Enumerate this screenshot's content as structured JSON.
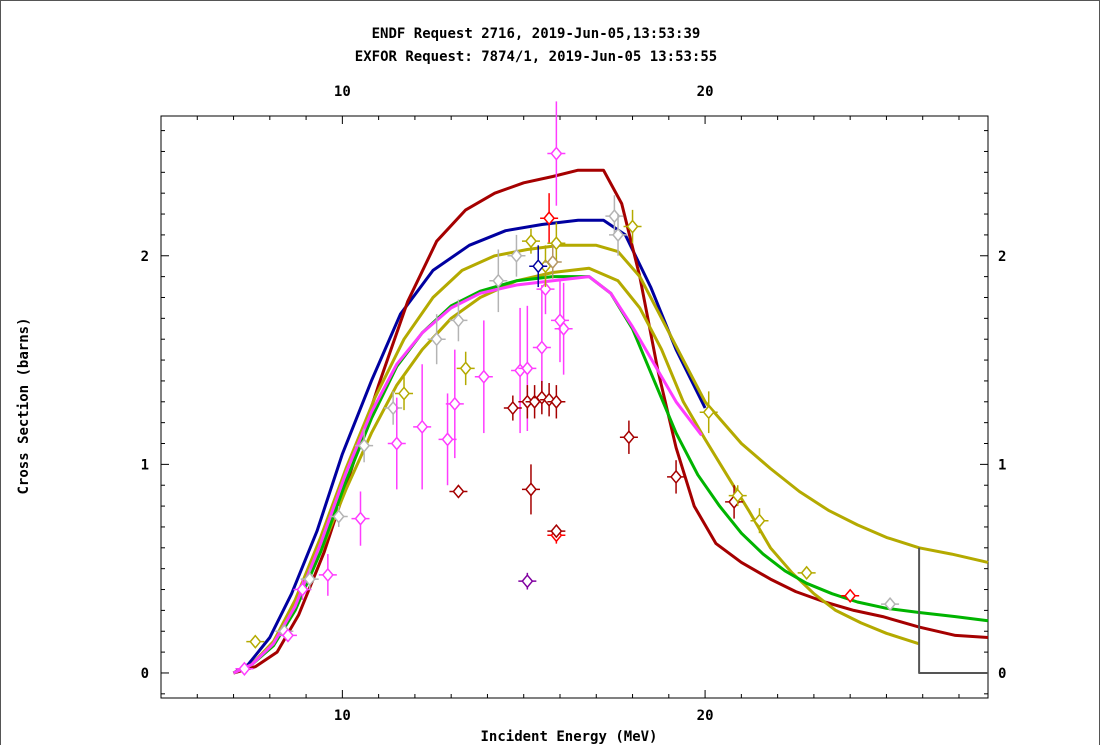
{
  "chart_data": {
    "type": "scatter",
    "title_lines": [
      "ENDF Request 2716, 2019-Jun-05,13:53:39",
      "EXFOR Request: 7874/1, 2019-Jun-05 13:53:55"
    ],
    "xlabel": "Incident Energy (MeV)",
    "ylabel": "Cross Section (barns)",
    "xlim": [
      5.0,
      27.8
    ],
    "ylim": [
      -0.12,
      2.67
    ],
    "x_ticks": [
      {
        "v": 10,
        "label": "10"
      },
      {
        "v": 20,
        "label": "20"
      }
    ],
    "y_ticks": [
      {
        "v": 0,
        "label": "0"
      },
      {
        "v": 1,
        "label": "1"
      },
      {
        "v": 2,
        "label": "2"
      }
    ],
    "grid": false,
    "colors": {
      "darkred": "#a50000",
      "navy": "#0000a0",
      "olive": "#b4aa00",
      "green": "#00b400",
      "magenta": "#ff3cff",
      "gray": "#b4b4b4",
      "red": "#ff0000",
      "purple": "#8000a0",
      "tan": "#b49664",
      "frame": "#555555"
    },
    "curves": [
      {
        "color": "navy",
        "points": [
          [
            7.0,
            0
          ],
          [
            7.4,
            0.04
          ],
          [
            8.0,
            0.17
          ],
          [
            8.6,
            0.38
          ],
          [
            9.3,
            0.68
          ],
          [
            10.0,
            1.05
          ],
          [
            10.8,
            1.4
          ],
          [
            11.6,
            1.72
          ],
          [
            12.5,
            1.93
          ],
          [
            13.5,
            2.05
          ],
          [
            14.5,
            2.12
          ],
          [
            15.5,
            2.15
          ],
          [
            16.5,
            2.17
          ],
          [
            17.2,
            2.17
          ],
          [
            17.8,
            2.1
          ],
          [
            18.5,
            1.85
          ],
          [
            19.2,
            1.55
          ],
          [
            20.0,
            1.27
          ]
        ]
      },
      {
        "color": "darkred",
        "points": [
          [
            7.0,
            0
          ],
          [
            7.6,
            0.03
          ],
          [
            8.2,
            0.1
          ],
          [
            8.8,
            0.28
          ],
          [
            9.5,
            0.58
          ],
          [
            10.2,
            0.95
          ],
          [
            11.0,
            1.38
          ],
          [
            11.8,
            1.78
          ],
          [
            12.6,
            2.07
          ],
          [
            13.4,
            2.22
          ],
          [
            14.2,
            2.3
          ],
          [
            15.0,
            2.35
          ],
          [
            15.8,
            2.38
          ],
          [
            16.5,
            2.41
          ],
          [
            17.2,
            2.41
          ],
          [
            17.7,
            2.25
          ],
          [
            18.2,
            1.9
          ],
          [
            18.7,
            1.45
          ],
          [
            19.2,
            1.08
          ],
          [
            19.7,
            0.8
          ],
          [
            20.3,
            0.62
          ],
          [
            21.0,
            0.53
          ],
          [
            21.8,
            0.45
          ],
          [
            22.5,
            0.39
          ],
          [
            23.3,
            0.34
          ],
          [
            24.1,
            0.3
          ],
          [
            24.9,
            0.27
          ],
          [
            25.9,
            0.22
          ],
          [
            26.9,
            0.18
          ],
          [
            27.8,
            0.17
          ]
        ]
      },
      {
        "color": "olive",
        "points": [
          [
            7.0,
            0
          ],
          [
            7.5,
            0.04
          ],
          [
            8.1,
            0.15
          ],
          [
            8.7,
            0.35
          ],
          [
            9.4,
            0.65
          ],
          [
            10.1,
            0.98
          ],
          [
            10.9,
            1.32
          ],
          [
            11.7,
            1.6
          ],
          [
            12.5,
            1.8
          ],
          [
            13.3,
            1.93
          ],
          [
            14.2,
            2.0
          ],
          [
            15.1,
            2.03
          ],
          [
            16.0,
            2.05
          ],
          [
            17.0,
            2.05
          ],
          [
            17.6,
            2.02
          ],
          [
            18.2,
            1.9
          ],
          [
            18.8,
            1.7
          ],
          [
            19.4,
            1.5
          ],
          [
            20.0,
            1.3
          ],
          [
            20.4,
            1.22
          ],
          [
            21.0,
            1.1
          ],
          [
            21.8,
            0.98
          ],
          [
            22.6,
            0.87
          ],
          [
            23.4,
            0.78
          ],
          [
            24.2,
            0.71
          ],
          [
            25.0,
            0.65
          ],
          [
            25.9,
            0.6
          ],
          [
            26.8,
            0.57
          ],
          [
            27.8,
            0.53
          ]
        ]
      },
      {
        "color": "olive",
        "points": [
          [
            7.0,
            0
          ],
          [
            7.5,
            0.04
          ],
          [
            8.1,
            0.15
          ],
          [
            8.7,
            0.33
          ],
          [
            9.4,
            0.58
          ],
          [
            10.1,
            0.88
          ],
          [
            10.8,
            1.15
          ],
          [
            11.5,
            1.38
          ],
          [
            12.2,
            1.55
          ],
          [
            13.0,
            1.7
          ],
          [
            13.8,
            1.8
          ],
          [
            14.8,
            1.88
          ],
          [
            15.8,
            1.92
          ],
          [
            16.8,
            1.94
          ],
          [
            17.6,
            1.88
          ],
          [
            18.2,
            1.75
          ],
          [
            18.8,
            1.55
          ],
          [
            19.4,
            1.3
          ],
          [
            20.0,
            1.12
          ],
          [
            20.6,
            0.95
          ],
          [
            21.2,
            0.78
          ],
          [
            21.8,
            0.6
          ],
          [
            22.4,
            0.48
          ],
          [
            23.0,
            0.38
          ],
          [
            23.6,
            0.3
          ],
          [
            24.3,
            0.24
          ],
          [
            25.0,
            0.19
          ],
          [
            25.9,
            0.14
          ]
        ]
      },
      {
        "color": "green",
        "points": [
          [
            7.0,
            0
          ],
          [
            7.5,
            0.04
          ],
          [
            8.1,
            0.13
          ],
          [
            8.7,
            0.3
          ],
          [
            9.4,
            0.58
          ],
          [
            10.1,
            0.92
          ],
          [
            10.8,
            1.22
          ],
          [
            11.5,
            1.47
          ],
          [
            12.2,
            1.63
          ],
          [
            13.0,
            1.76
          ],
          [
            13.8,
            1.83
          ],
          [
            14.8,
            1.88
          ],
          [
            15.8,
            1.9
          ],
          [
            16.8,
            1.9
          ],
          [
            17.4,
            1.82
          ],
          [
            18.0,
            1.65
          ],
          [
            18.6,
            1.4
          ],
          [
            19.2,
            1.15
          ],
          [
            19.8,
            0.95
          ],
          [
            20.4,
            0.8
          ],
          [
            21.0,
            0.67
          ],
          [
            21.6,
            0.57
          ],
          [
            22.2,
            0.49
          ],
          [
            22.8,
            0.43
          ],
          [
            23.5,
            0.38
          ],
          [
            24.2,
            0.34
          ],
          [
            25.0,
            0.31
          ],
          [
            25.9,
            0.29
          ],
          [
            26.9,
            0.27
          ],
          [
            27.8,
            0.25
          ]
        ]
      },
      {
        "color": "magenta",
        "points": [
          [
            7.0,
            0
          ],
          [
            7.5,
            0.04
          ],
          [
            8.1,
            0.14
          ],
          [
            8.7,
            0.32
          ],
          [
            9.4,
            0.62
          ],
          [
            10.1,
            0.96
          ],
          [
            10.8,
            1.25
          ],
          [
            11.5,
            1.48
          ],
          [
            12.2,
            1.63
          ],
          [
            13.0,
            1.75
          ],
          [
            13.8,
            1.82
          ],
          [
            14.8,
            1.86
          ],
          [
            15.8,
            1.88
          ],
          [
            16.8,
            1.9
          ],
          [
            17.4,
            1.82
          ],
          [
            18.0,
            1.66
          ],
          [
            18.6,
            1.48
          ],
          [
            19.2,
            1.3
          ],
          [
            19.9,
            1.14
          ]
        ]
      },
      {
        "color": "frame",
        "width": 2,
        "points": [
          [
            25.9,
            0.6
          ],
          [
            25.9,
            0
          ],
          [
            27.8,
            0
          ]
        ]
      }
    ],
    "points": [
      {
        "x": 7.3,
        "y": 0.02,
        "dy": 0.02,
        "c": "magenta"
      },
      {
        "x": 7.6,
        "y": 0.15,
        "dy": 0.03,
        "c": "olive"
      },
      {
        "x": 8.4,
        "y": 0.2,
        "dy": 0.02,
        "c": "gray"
      },
      {
        "x": 8.5,
        "y": 0.18,
        "dy": 0.02,
        "c": "magenta"
      },
      {
        "x": 8.9,
        "y": 0.4,
        "dy": 0.05,
        "c": "magenta"
      },
      {
        "x": 9.1,
        "y": 0.45,
        "dy": 0.05,
        "c": "gray"
      },
      {
        "x": 9.6,
        "y": 0.47,
        "dy": 0.1,
        "c": "magenta"
      },
      {
        "x": 9.9,
        "y": 0.75,
        "dy": 0.05,
        "c": "gray"
      },
      {
        "x": 10.5,
        "y": 0.74,
        "dy": 0.13,
        "c": "magenta"
      },
      {
        "x": 10.6,
        "y": 1.09,
        "dy": 0.08,
        "c": "gray"
      },
      {
        "x": 11.4,
        "y": 1.27,
        "dy": 0.08,
        "c": "gray"
      },
      {
        "x": 11.5,
        "y": 1.1,
        "dy": 0.22,
        "c": "magenta"
      },
      {
        "x": 11.7,
        "y": 1.34,
        "dy": 0.08,
        "c": "olive"
      },
      {
        "x": 12.2,
        "y": 1.18,
        "dy": 0.3,
        "c": "magenta"
      },
      {
        "x": 12.6,
        "y": 1.6,
        "dy": 0.12,
        "c": "gray"
      },
      {
        "x": 12.9,
        "y": 1.12,
        "dy": 0.22,
        "c": "magenta"
      },
      {
        "x": 13.1,
        "y": 1.29,
        "dy": 0.26,
        "c": "magenta"
      },
      {
        "x": 13.2,
        "y": 1.69,
        "dy": 0.1,
        "c": "gray"
      },
      {
        "x": 13.4,
        "y": 1.46,
        "dy": 0.08,
        "c": "olive"
      },
      {
        "x": 13.9,
        "y": 1.42,
        "dy": 0.27,
        "c": "magenta"
      },
      {
        "x": 14.3,
        "y": 1.88,
        "dy": 0.15,
        "c": "gray"
      },
      {
        "x": 14.8,
        "y": 2.0,
        "dy": 0.1,
        "c": "gray"
      },
      {
        "x": 14.9,
        "y": 1.45,
        "dy": 0.3,
        "c": "magenta"
      },
      {
        "x": 15.1,
        "y": 1.46,
        "dy": 0.3,
        "c": "magenta"
      },
      {
        "x": 15.2,
        "y": 2.07,
        "dy": 0.06,
        "c": "olive"
      },
      {
        "x": 15.5,
        "y": 1.56,
        "dy": 0.3,
        "c": "magenta"
      },
      {
        "x": 15.6,
        "y": 1.84,
        "dy": 0.12,
        "c": "magenta"
      },
      {
        "x": 15.7,
        "y": 2.18,
        "dy": 0.12,
        "c": "red"
      },
      {
        "x": 15.9,
        "y": 2.06,
        "dy": 0.1,
        "c": "olive"
      },
      {
        "x": 16.1,
        "y": 1.65,
        "dy": 0.22,
        "c": "magenta"
      },
      {
        "x": 15.6,
        "y": 1.95,
        "dy": 0.1,
        "c": "olive"
      },
      {
        "x": 15.8,
        "y": 1.97,
        "dy": 0.08,
        "c": "tan"
      },
      {
        "x": 15.4,
        "y": 1.95,
        "dy": 0.1,
        "c": "navy"
      },
      {
        "x": 16.0,
        "y": 1.69,
        "dy": 0.2,
        "c": "magenta"
      },
      {
        "x": 14.7,
        "y": 1.27,
        "dy": 0.06,
        "c": "darkred"
      },
      {
        "x": 15.1,
        "y": 1.3,
        "dy": 0.08,
        "c": "darkred"
      },
      {
        "x": 15.3,
        "y": 1.3,
        "dy": 0.08,
        "c": "darkred"
      },
      {
        "x": 15.5,
        "y": 1.32,
        "dy": 0.08,
        "c": "darkred"
      },
      {
        "x": 15.7,
        "y": 1.31,
        "dy": 0.08,
        "c": "darkred"
      },
      {
        "x": 15.9,
        "y": 1.3,
        "dy": 0.08,
        "c": "darkred"
      },
      {
        "x": 13.2,
        "y": 0.87,
        "dy": 0.03,
        "c": "darkred"
      },
      {
        "x": 15.2,
        "y": 0.88,
        "dy": 0.12,
        "c": "darkred"
      },
      {
        "x": 15.9,
        "y": 0.66,
        "dy": 0.04,
        "c": "red"
      },
      {
        "x": 15.9,
        "y": 0.68,
        "dy": 0.03,
        "c": "darkred"
      },
      {
        "x": 15.1,
        "y": 0.44,
        "dy": 0.04,
        "c": "purple"
      },
      {
        "x": 15.9,
        "y": 2.49,
        "dy": 0.25,
        "c": "magenta"
      },
      {
        "x": 17.5,
        "y": 2.19,
        "dy": 0.1,
        "c": "gray"
      },
      {
        "x": 17.6,
        "y": 2.1,
        "dy": 0.1,
        "c": "gray"
      },
      {
        "x": 18.0,
        "y": 2.14,
        "dy": 0.08,
        "c": "olive"
      },
      {
        "x": 17.9,
        "y": 1.13,
        "dy": 0.08,
        "c": "darkred"
      },
      {
        "x": 19.2,
        "y": 0.94,
        "dy": 0.08,
        "c": "darkred"
      },
      {
        "x": 20.8,
        "y": 0.82,
        "dy": 0.08,
        "c": "darkred"
      },
      {
        "x": 20.1,
        "y": 1.25,
        "dy": 0.1,
        "c": "olive"
      },
      {
        "x": 20.9,
        "y": 0.85,
        "dy": 0.05,
        "c": "olive"
      },
      {
        "x": 21.5,
        "y": 0.73,
        "dy": 0.06,
        "c": "olive"
      },
      {
        "x": 22.8,
        "y": 0.48,
        "dy": 0.03,
        "c": "olive"
      },
      {
        "x": 24.0,
        "y": 0.37,
        "dy": 0.03,
        "c": "red"
      },
      {
        "x": 25.1,
        "y": 0.33,
        "dy": 0.02,
        "c": "gray"
      }
    ]
  }
}
